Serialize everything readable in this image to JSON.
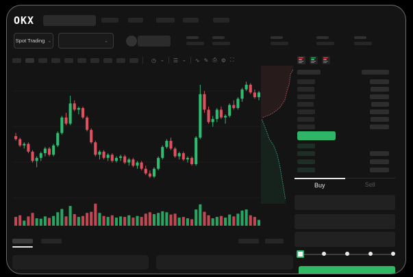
{
  "header": {
    "logo": "OKX",
    "search_placeholder": "",
    "nav_item_count": 5
  },
  "subheader": {
    "market_selector_label": "Spot Trading",
    "chevron": "⌄"
  },
  "toolbar": {
    "icons": [
      {
        "name": "interval-icon",
        "glyph": "◷"
      },
      {
        "name": "chevron-down-icon",
        "glyph": "⌄"
      },
      {
        "name": "chart-type-icon",
        "glyph": "☰"
      },
      {
        "name": "chevron-down-icon",
        "glyph": "⌄"
      },
      {
        "name": "indicator-icon",
        "glyph": "∿"
      },
      {
        "name": "draw-icon",
        "glyph": "✎"
      },
      {
        "name": "camera-icon",
        "glyph": "⎙"
      },
      {
        "name": "settings-icon",
        "glyph": "⚙"
      },
      {
        "name": "fullscreen-icon",
        "glyph": "⛶"
      }
    ]
  },
  "order_book": {
    "buy_tab": "Buy",
    "sell_tab": "Sell",
    "ask_row_count": 7,
    "bid_row_count": 4,
    "last_price_highlight_color": "#2eb567"
  },
  "trade_form": {
    "slider_steps": 5,
    "buy_button_color": "#2fb963"
  },
  "colors": {
    "background": "#000000",
    "window": "#141414",
    "up_green": "#2ebd70",
    "down_red": "#e0505e",
    "accent_green": "#2fb963",
    "active_text": "#e8e8e8",
    "muted_text": "#555555"
  },
  "chart_data": {
    "type": "candlestick",
    "title": "",
    "xlabel": "",
    "ylabel": "",
    "ylim": [
      0,
      100
    ],
    "grid": true,
    "legend": false,
    "up_color": "#2ebd70",
    "down_color": "#e0505e",
    "candles": [
      [
        55,
        57,
        52,
        53
      ],
      [
        53,
        54,
        48,
        49
      ],
      [
        49,
        51,
        47,
        50
      ],
      [
        50,
        51,
        44,
        45
      ],
      [
        45,
        46,
        38,
        39
      ],
      [
        39,
        42,
        35,
        41
      ],
      [
        41,
        45,
        39,
        44
      ],
      [
        44,
        48,
        42,
        47
      ],
      [
        47,
        48,
        42,
        43
      ],
      [
        43,
        50,
        42,
        49
      ],
      [
        49,
        58,
        48,
        57
      ],
      [
        57,
        68,
        56,
        67
      ],
      [
        67,
        70,
        62,
        63
      ],
      [
        63,
        81,
        62,
        76
      ],
      [
        76,
        78,
        71,
        72
      ],
      [
        72,
        74,
        69,
        73
      ],
      [
        73,
        74,
        66,
        67
      ],
      [
        67,
        68,
        58,
        59
      ],
      [
        59,
        60,
        50,
        51
      ],
      [
        51,
        52,
        42,
        43
      ],
      [
        43,
        46,
        40,
        45
      ],
      [
        45,
        46,
        40,
        41
      ],
      [
        41,
        44,
        39,
        43
      ],
      [
        43,
        44,
        38,
        39
      ],
      [
        39,
        42,
        38,
        41
      ],
      [
        41,
        43,
        39,
        42
      ],
      [
        42,
        43,
        37,
        38
      ],
      [
        38,
        41,
        36,
        40
      ],
      [
        40,
        41,
        35,
        36
      ],
      [
        36,
        39,
        34,
        38
      ],
      [
        38,
        39,
        33,
        34
      ],
      [
        34,
        36,
        30,
        31
      ],
      [
        31,
        33,
        28,
        29
      ],
      [
        29,
        35,
        28,
        34
      ],
      [
        34,
        42,
        33,
        41
      ],
      [
        41,
        49,
        40,
        48
      ],
      [
        48,
        53,
        47,
        52
      ],
      [
        52,
        54,
        46,
        47
      ],
      [
        47,
        48,
        41,
        42
      ],
      [
        42,
        45,
        40,
        44
      ],
      [
        44,
        45,
        39,
        40
      ],
      [
        40,
        42,
        38,
        41
      ],
      [
        41,
        42,
        36,
        37
      ],
      [
        37,
        55,
        36,
        54
      ],
      [
        54,
        88,
        53,
        82
      ],
      [
        82,
        84,
        70,
        72
      ],
      [
        72,
        74,
        63,
        64
      ],
      [
        64,
        68,
        61,
        66
      ],
      [
        66,
        73,
        64,
        72
      ],
      [
        72,
        74,
        66,
        67
      ],
      [
        67,
        69,
        63,
        68
      ],
      [
        68,
        76,
        67,
        75
      ],
      [
        75,
        78,
        72,
        73
      ],
      [
        73,
        80,
        72,
        79
      ],
      [
        79,
        86,
        77,
        85
      ],
      [
        85,
        90,
        84,
        88
      ],
      [
        88,
        89,
        82,
        83
      ],
      [
        83,
        85,
        79,
        80
      ],
      [
        80,
        84,
        78,
        83
      ]
    ],
    "volumes": [
      38,
      45,
      22,
      40,
      55,
      32,
      30,
      40,
      34,
      42,
      58,
      72,
      40,
      85,
      50,
      38,
      42,
      55,
      60,
      95,
      55,
      42,
      38,
      45,
      35,
      40,
      38,
      45,
      35,
      42,
      38,
      52,
      58,
      50,
      55,
      62,
      58,
      48,
      52,
      35,
      38,
      32,
      28,
      70,
      92,
      60,
      45,
      32,
      38,
      42,
      35,
      48,
      40,
      52,
      65,
      70,
      45,
      38,
      25
    ],
    "depth": {
      "asks": [
        [
          1,
          0.03
        ],
        [
          0.92,
          0.06
        ],
        [
          0.88,
          0.13
        ],
        [
          0.8,
          0.19
        ],
        [
          0.74,
          0.25
        ],
        [
          0.6,
          0.3
        ],
        [
          0.45,
          0.33
        ],
        [
          0.28,
          0.355
        ],
        [
          0.1,
          0.37
        ],
        [
          0.03,
          0.38
        ]
      ],
      "bids": [
        [
          0.03,
          0.39
        ],
        [
          0.1,
          0.43
        ],
        [
          0.18,
          0.48
        ],
        [
          0.26,
          0.53
        ],
        [
          0.4,
          0.58
        ],
        [
          0.5,
          0.64
        ],
        [
          0.58,
          0.72
        ],
        [
          0.64,
          0.8
        ],
        [
          0.7,
          0.88
        ],
        [
          0.76,
          0.97
        ]
      ],
      "ask_line": "#b85a64",
      "ask_fill": "rgba(190,80,92,0.12)",
      "bid_line": "#35a98c",
      "bid_fill": "rgba(46,180,120,0.10)"
    }
  }
}
